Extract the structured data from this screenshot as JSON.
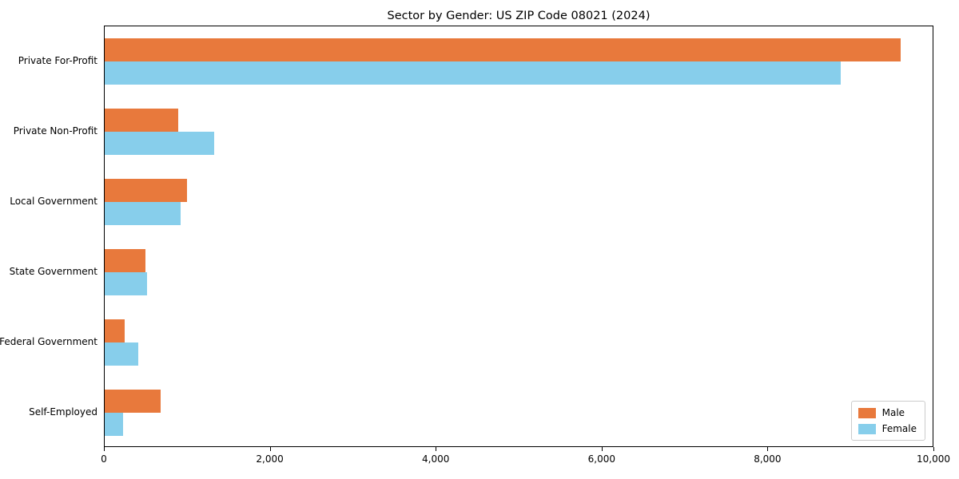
{
  "chart_data": {
    "type": "bar",
    "orientation": "horizontal",
    "title": "Sector by Gender: US ZIP Code 08021 (2024)",
    "categories": [
      "Private For-Profit",
      "Private Non-Profit",
      "Local Government",
      "State Government",
      "Federal Government",
      "Self-Employed"
    ],
    "series": [
      {
        "name": "Male",
        "color": "#e8793c",
        "values": [
          9600,
          890,
          990,
          490,
          240,
          670
        ]
      },
      {
        "name": "Female",
        "color": "#87ceeb",
        "values": [
          8870,
          1320,
          915,
          510,
          405,
          225
        ]
      }
    ],
    "xlabel": "",
    "ylabel": "",
    "xlim": [
      0,
      10000
    ],
    "x_ticks": [
      0,
      2000,
      4000,
      6000,
      8000,
      10000
    ],
    "x_tick_labels": [
      "0",
      "2,000",
      "4,000",
      "6,000",
      "8,000",
      "10,000"
    ],
    "grid": false,
    "legend_position": "lower right"
  }
}
